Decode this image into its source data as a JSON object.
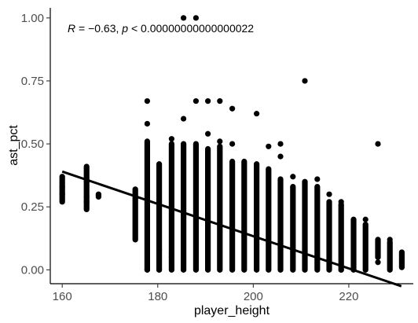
{
  "chart_data": {
    "type": "scatter",
    "xlabel": "player_height",
    "ylabel": "ast_pct",
    "xlim": [
      157.5,
      233.5
    ],
    "ylim": [
      -0.055,
      1.04
    ],
    "x_ticks": [
      160,
      180,
      200,
      220
    ],
    "x_tick_labels": [
      "160",
      "180",
      "200",
      "220"
    ],
    "y_ticks": [
      0.0,
      0.25,
      0.5,
      0.75,
      1.0
    ],
    "y_tick_labels": [
      "0.00",
      "0.25",
      "0.50",
      "0.75",
      "1.00"
    ],
    "annotation": {
      "r_symbol": "R",
      "r_text": " = −0.63, ",
      "p_symbol": "p",
      "p_text": " < 0.00000000000000022"
    },
    "grid": false,
    "point_color": "#000000",
    "line_color": "#000000",
    "regression_line": {
      "x": [
        160,
        231
      ],
      "y": [
        0.39,
        -0.065
      ]
    },
    "columns": [
      {
        "x": 160.0,
        "ymin": 0.27,
        "ymax": 0.37
      },
      {
        "x": 165.1,
        "ymin": 0.24,
        "ymax": 0.41
      },
      {
        "x": 167.6,
        "ymin": 0.29,
        "ymax": 0.3
      },
      {
        "x": 175.3,
        "ymin": 0.12,
        "ymax": 0.32
      },
      {
        "x": 177.8,
        "ymin": 0.0,
        "ymax": 0.51
      },
      {
        "x": 180.3,
        "ymin": 0.0,
        "ymax": 0.42
      },
      {
        "x": 182.9,
        "ymin": 0.0,
        "ymax": 0.5
      },
      {
        "x": 185.4,
        "ymin": 0.0,
        "ymax": 0.5
      },
      {
        "x": 188.0,
        "ymin": 0.0,
        "ymax": 0.5
      },
      {
        "x": 190.5,
        "ymin": 0.0,
        "ymax": 0.48
      },
      {
        "x": 193.0,
        "ymin": 0.0,
        "ymax": 0.49
      },
      {
        "x": 195.6,
        "ymin": 0.0,
        "ymax": 0.43
      },
      {
        "x": 198.1,
        "ymin": 0.0,
        "ymax": 0.43
      },
      {
        "x": 200.7,
        "ymin": 0.0,
        "ymax": 0.42
      },
      {
        "x": 203.2,
        "ymin": 0.0,
        "ymax": 0.4
      },
      {
        "x": 205.7,
        "ymin": 0.0,
        "ymax": 0.36
      },
      {
        "x": 208.3,
        "ymin": 0.0,
        "ymax": 0.33
      },
      {
        "x": 210.8,
        "ymin": 0.0,
        "ymax": 0.35
      },
      {
        "x": 213.4,
        "ymin": 0.0,
        "ymax": 0.33
      },
      {
        "x": 215.9,
        "ymin": 0.0,
        "ymax": 0.27
      },
      {
        "x": 218.4,
        "ymin": 0.0,
        "ymax": 0.26
      },
      {
        "x": 221.0,
        "ymin": 0.0,
        "ymax": 0.2
      },
      {
        "x": 223.5,
        "ymin": 0.0,
        "ymax": 0.18
      },
      {
        "x": 226.1,
        "ymin": 0.05,
        "ymax": 0.12
      },
      {
        "x": 228.6,
        "ymin": 0.0,
        "ymax": 0.11
      },
      {
        "x": 231.1,
        "ymin": 0.01,
        "ymax": 0.07
      }
    ],
    "points": [
      {
        "x": 160.0,
        "y": 0.3
      },
      {
        "x": 160.0,
        "y": 0.33
      },
      {
        "x": 165.1,
        "y": 0.27
      },
      {
        "x": 165.1,
        "y": 0.35
      },
      {
        "x": 165.1,
        "y": 0.29
      },
      {
        "x": 177.8,
        "y": 0.67
      },
      {
        "x": 177.8,
        "y": 0.58
      },
      {
        "x": 177.8,
        "y": 0.0
      },
      {
        "x": 180.3,
        "y": 0.0
      },
      {
        "x": 180.3,
        "y": 0.08
      },
      {
        "x": 182.9,
        "y": 0.52
      },
      {
        "x": 182.9,
        "y": 0.05
      },
      {
        "x": 185.4,
        "y": 0.6
      },
      {
        "x": 185.4,
        "y": 1.0
      },
      {
        "x": 188.0,
        "y": 1.0
      },
      {
        "x": 188.0,
        "y": 0.67
      },
      {
        "x": 190.5,
        "y": 0.67
      },
      {
        "x": 193.0,
        "y": 0.67
      },
      {
        "x": 190.5,
        "y": 0.54
      },
      {
        "x": 195.6,
        "y": 0.64
      },
      {
        "x": 195.6,
        "y": 0.5
      },
      {
        "x": 200.7,
        "y": 0.62
      },
      {
        "x": 205.7,
        "y": 0.5
      },
      {
        "x": 205.7,
        "y": 0.45
      },
      {
        "x": 210.8,
        "y": 0.75
      },
      {
        "x": 213.4,
        "y": 0.36
      },
      {
        "x": 215.9,
        "y": 0.3
      },
      {
        "x": 218.4,
        "y": 0.27
      },
      {
        "x": 226.1,
        "y": 0.5
      },
      {
        "x": 228.6,
        "y": 0.12
      },
      {
        "x": 226.1,
        "y": 0.03
      },
      {
        "x": 223.5,
        "y": 0.2
      },
      {
        "x": 193.0,
        "y": 0.51
      },
      {
        "x": 203.2,
        "y": 0.49
      },
      {
        "x": 208.3,
        "y": 0.37
      },
      {
        "x": 218.4,
        "y": 0.0
      }
    ]
  }
}
